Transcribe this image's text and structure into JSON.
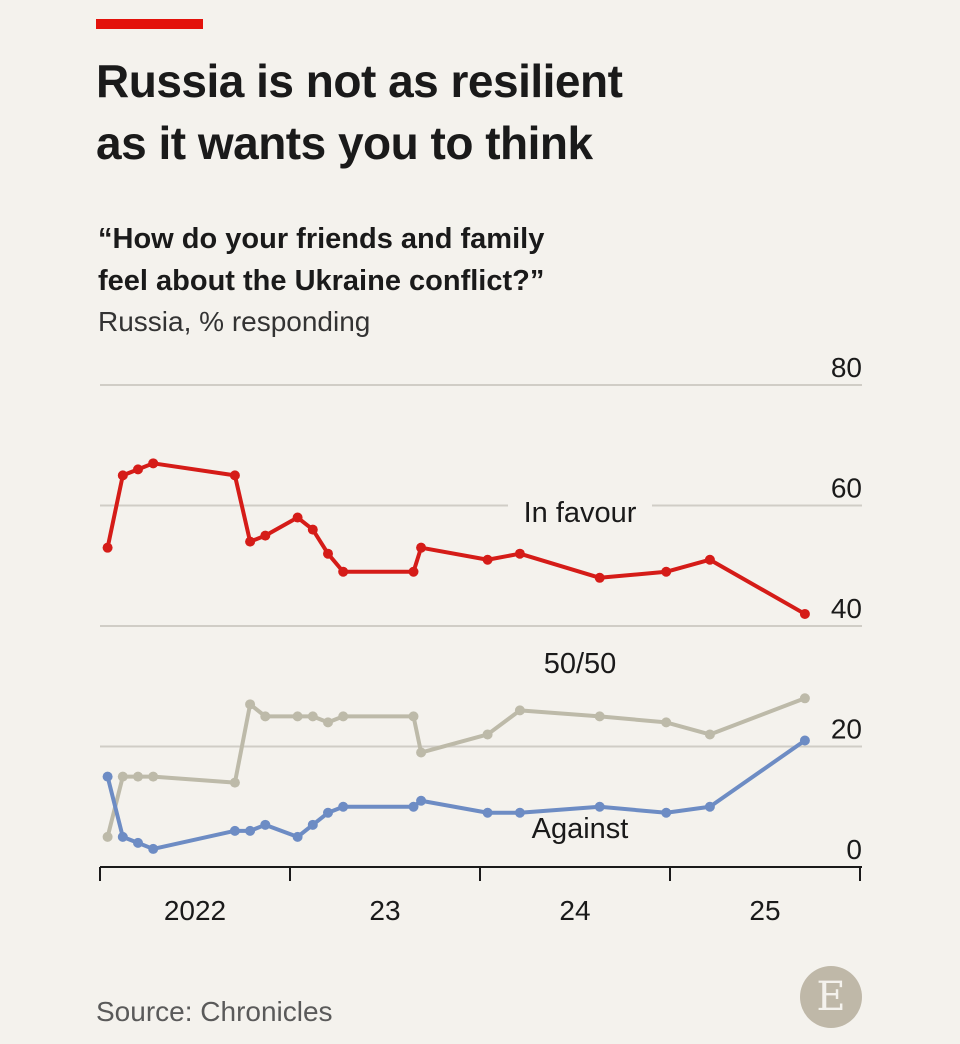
{
  "header": {
    "title_line1": "Russia is not as resilient",
    "title_line2": "as it wants you to think",
    "subtitle_line1": "“How do your friends and family",
    "subtitle_line2": "feel about the Ukraine conflict?”",
    "unit_note": "Russia, % responding"
  },
  "footer": {
    "source": "Source: Chronicles",
    "logo_letter": "E"
  },
  "colors": {
    "accent": "#e3120b",
    "in_favour": "#d51c18",
    "fifty_fifty": "#bdbaa9",
    "against": "#6d8cc4",
    "background": "#f4f2ed",
    "grid": "#d0cdc6"
  },
  "chart_data": {
    "type": "line",
    "ylim": [
      0,
      80
    ],
    "y_ticks": [
      "0",
      "20",
      "40",
      "60",
      "80"
    ],
    "x_tick_labels": [
      {
        "label": "2022",
        "year": 2022
      },
      {
        "label": "23",
        "year": 2023
      },
      {
        "label": "24",
        "year": 2024
      },
      {
        "label": "25",
        "year": 2025
      }
    ],
    "x_range": [
      2022.0,
      2025.8
    ],
    "series": [
      {
        "key": "in_favour",
        "name": "In favour",
        "x": [
          2022.04,
          2022.12,
          2022.2,
          2022.28,
          2022.71,
          2022.79,
          2022.87,
          2023.04,
          2023.12,
          2023.2,
          2023.28,
          2023.65,
          2023.69,
          2024.04,
          2024.21,
          2024.63,
          2024.98,
          2025.21,
          2025.71
        ],
        "y": [
          53,
          65,
          66,
          67,
          65,
          54,
          55,
          58,
          56,
          52,
          49,
          49,
          53,
          51,
          52,
          48,
          49,
          51,
          42
        ]
      },
      {
        "key": "fifty_fifty",
        "name": "50/50",
        "x": [
          2022.04,
          2022.12,
          2022.2,
          2022.28,
          2022.71,
          2022.79,
          2022.87,
          2023.04,
          2023.12,
          2023.2,
          2023.28,
          2023.65,
          2023.69,
          2024.04,
          2024.21,
          2024.63,
          2024.98,
          2025.21,
          2025.71
        ],
        "y": [
          5,
          15,
          15,
          15,
          14,
          27,
          25,
          25,
          25,
          24,
          25,
          25,
          19,
          22,
          26,
          25,
          24,
          22,
          28
        ]
      },
      {
        "key": "against",
        "name": "Against",
        "x": [
          2022.04,
          2022.12,
          2022.2,
          2022.28,
          2022.71,
          2022.79,
          2022.87,
          2023.04,
          2023.12,
          2023.2,
          2023.28,
          2023.65,
          2023.69,
          2024.04,
          2024.21,
          2024.63,
          2024.98,
          2025.21,
          2025.71
        ],
        "y": [
          15,
          5,
          4,
          3,
          6,
          6,
          7,
          5,
          7,
          9,
          10,
          10,
          11,
          9,
          9,
          10,
          9,
          10,
          21
        ]
      }
    ]
  }
}
